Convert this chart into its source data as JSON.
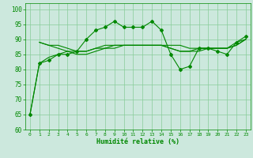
{
  "title": "",
  "xlabel": "Humidité relative (%)",
  "ylabel": "",
  "xlim": [
    -0.5,
    23.5
  ],
  "ylim": [
    60,
    102
  ],
  "yticks": [
    60,
    65,
    70,
    75,
    80,
    85,
    90,
    95,
    100
  ],
  "xticks": [
    0,
    1,
    2,
    3,
    4,
    5,
    6,
    7,
    8,
    9,
    10,
    11,
    12,
    13,
    14,
    15,
    16,
    17,
    18,
    19,
    20,
    21,
    22,
    23
  ],
  "bg_color": "#cce8dd",
  "grid_color": "#88cc99",
  "line_color": "#008800",
  "lines": [
    {
      "x": [
        0,
        1,
        2,
        3,
        4,
        5,
        6,
        7,
        8,
        9,
        10,
        11,
        12,
        13,
        14,
        15,
        16,
        17,
        18,
        19,
        20,
        21,
        22,
        23
      ],
      "y": [
        65,
        82,
        83,
        85,
        85,
        86,
        90,
        93,
        94,
        96,
        94,
        94,
        94,
        96,
        93,
        85,
        80,
        81,
        87,
        87,
        86,
        85,
        89,
        91
      ],
      "marker": true
    },
    {
      "x": [
        0,
        1,
        2,
        3,
        4,
        5,
        6,
        7,
        8,
        9,
        10,
        11,
        12,
        13,
        14,
        15,
        16,
        17,
        18,
        19,
        20,
        21,
        22,
        23
      ],
      "y": [
        65,
        82,
        84,
        85,
        86,
        86,
        86,
        87,
        88,
        88,
        88,
        88,
        88,
        88,
        88,
        87,
        86,
        86,
        87,
        87,
        87,
        87,
        88,
        90
      ],
      "marker": false
    },
    {
      "x": [
        1,
        2,
        3,
        4,
        5,
        6,
        7,
        8,
        9,
        10,
        11,
        12,
        13,
        14,
        15,
        16,
        17,
        18,
        19,
        20,
        21,
        22,
        23
      ],
      "y": [
        89,
        88,
        88,
        87,
        86,
        86,
        87,
        87,
        87,
        88,
        88,
        88,
        88,
        88,
        88,
        88,
        87,
        87,
        87,
        87,
        87,
        89,
        90
      ],
      "marker": false
    },
    {
      "x": [
        1,
        2,
        3,
        4,
        5,
        6,
        7,
        8,
        9,
        10,
        11,
        12,
        13,
        14,
        15,
        16,
        17,
        18,
        19,
        20,
        21,
        22,
        23
      ],
      "y": [
        89,
        88,
        87,
        86,
        85,
        85,
        86,
        87,
        88,
        88,
        88,
        88,
        88,
        88,
        87,
        86,
        86,
        86,
        87,
        87,
        87,
        88,
        90
      ],
      "marker": false
    }
  ]
}
